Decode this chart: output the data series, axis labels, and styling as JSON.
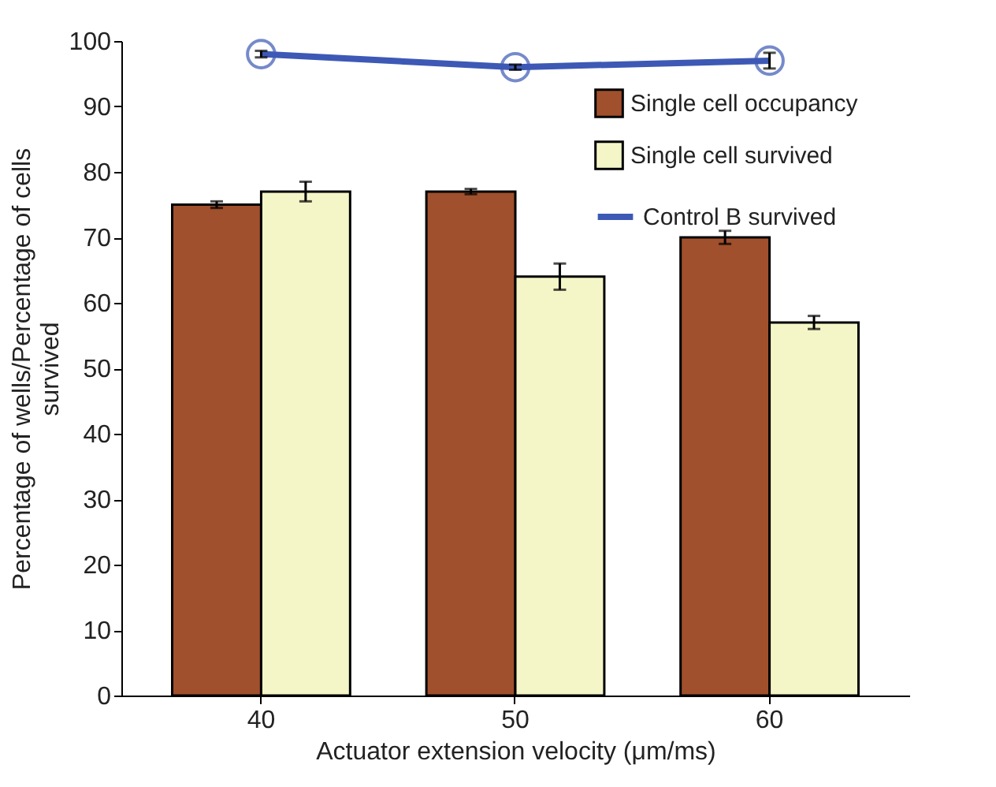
{
  "chart_data": {
    "type": "bar",
    "xlabel": "Actuator extension velocity (μm/ms)",
    "ylabel": "Percentage of wells/Percentage of cells survived",
    "categories": [
      "40",
      "50",
      "60"
    ],
    "series": [
      {
        "name": "Single cell occupancy",
        "color": "#a0502d",
        "values": [
          75,
          77,
          70
        ],
        "errors": [
          0.5,
          0.4,
          1
        ]
      },
      {
        "name": "Single cell survived",
        "color": "#f5f6c8",
        "values": [
          77,
          64,
          57
        ],
        "errors": [
          1.5,
          2,
          1
        ]
      },
      {
        "name": "Control B survived",
        "type": "line",
        "color": "#3d59b5",
        "marker": "circle",
        "values": [
          98,
          96,
          97
        ],
        "errors": [
          0.5,
          0.4,
          1.2
        ]
      }
    ],
    "ylim": [
      0,
      100
    ],
    "yticks": [
      0,
      10,
      20,
      30,
      40,
      50,
      60,
      70,
      80,
      90,
      100
    ],
    "grid": false,
    "legend": "top right"
  }
}
